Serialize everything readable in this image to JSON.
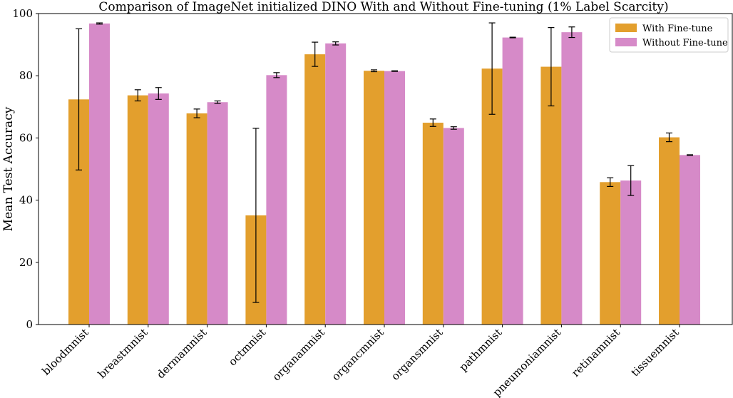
{
  "chart_data": {
    "type": "bar",
    "title": "Comparison of ImageNet initialized DINO With and Without Fine-tuning (1% Label Scarcity)",
    "xlabel": "",
    "ylabel": "Mean Test Accuracy",
    "ylim": [
      0,
      100
    ],
    "yticks": [
      0,
      20,
      40,
      60,
      80,
      100
    ],
    "grid": false,
    "legend_position": "top-right",
    "categories": [
      "bloodmnist",
      "breastmnist",
      "dermamnist",
      "octmnist",
      "organamnist",
      "organcmnist",
      "organsmnist",
      "pathmnist",
      "pneumoniamnist",
      "retinamnist",
      "tissuemnist"
    ],
    "series": [
      {
        "name": "With Fine-tune",
        "color": "#e39f2d",
        "values": [
          72.4,
          73.7,
          67.9,
          35.1,
          86.9,
          81.6,
          64.9,
          82.3,
          82.9,
          45.8,
          60.2
        ],
        "errors": [
          22.7,
          1.8,
          1.4,
          28.0,
          3.9,
          0.3,
          1.2,
          14.7,
          12.6,
          1.4,
          1.4
        ]
      },
      {
        "name": "Without Fine-tune",
        "color": "#d68ac8",
        "values": [
          96.8,
          74.3,
          71.5,
          80.2,
          90.4,
          81.5,
          63.2,
          92.3,
          94.0,
          46.3,
          54.5
        ],
        "errors": [
          0.2,
          1.9,
          0.4,
          0.8,
          0.5,
          0.1,
          0.4,
          0.1,
          1.7,
          4.8,
          0.1
        ]
      }
    ]
  }
}
